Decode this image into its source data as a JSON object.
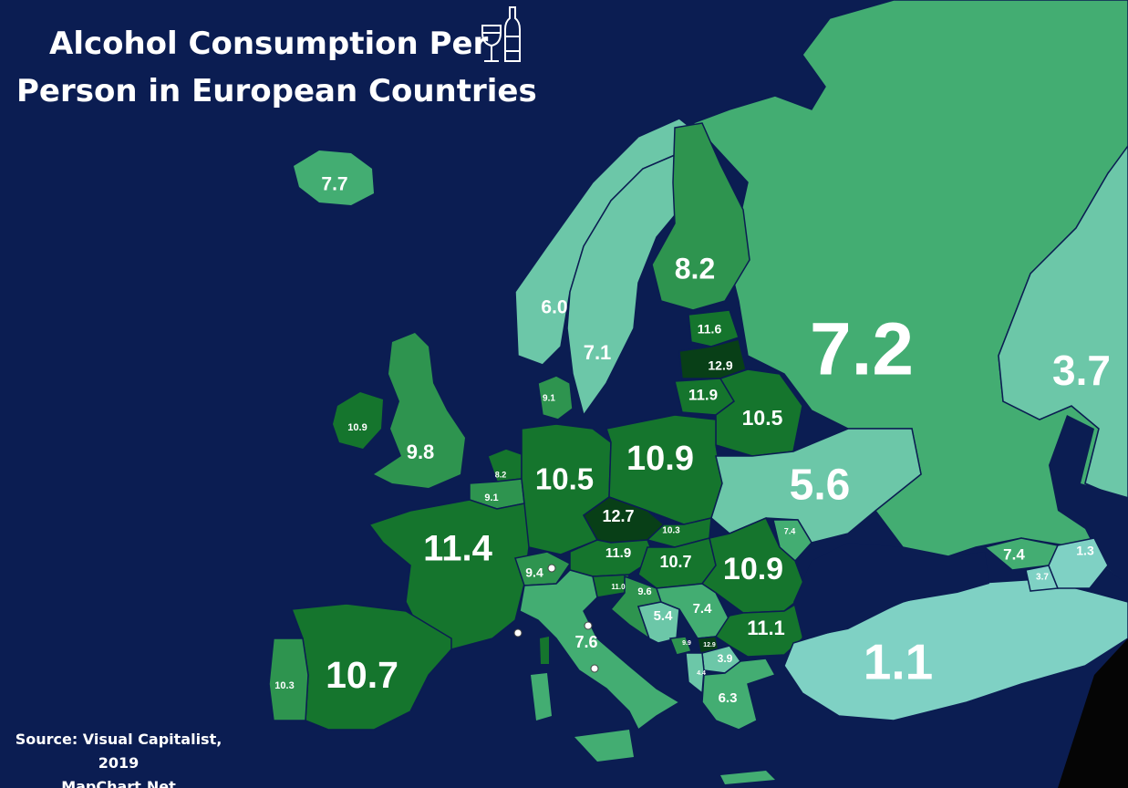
{
  "title": {
    "line1": "Alcohol Consumption Per",
    "line2": "Person in European Countries"
  },
  "credits": {
    "source": "Source: Visual Capitalist, 2019",
    "site": "MapChart.Net"
  },
  "colors": {
    "sea": "#0b1d52",
    "scale": [
      "#7fd1c4",
      "#6cc7a8",
      "#43ad72",
      "#2e944f",
      "#15752d",
      "#0d5a22",
      "#083f17"
    ]
  },
  "regions": [
    {
      "id": "iceland",
      "value": "7.7"
    },
    {
      "id": "norway",
      "value": "6.0"
    },
    {
      "id": "sweden",
      "value": "7.1"
    },
    {
      "id": "finland",
      "value": "8.2"
    },
    {
      "id": "russia",
      "value": "7.2"
    },
    {
      "id": "kazakhstan",
      "value": "3.7"
    },
    {
      "id": "estonia",
      "value": "11.6"
    },
    {
      "id": "latvia",
      "value": "12.9"
    },
    {
      "id": "lithuania",
      "value": "11.9"
    },
    {
      "id": "belarus",
      "value": "10.5"
    },
    {
      "id": "denmark",
      "value": "9.1"
    },
    {
      "id": "ireland",
      "value": "10.9"
    },
    {
      "id": "united-kingdom",
      "value": "9.8"
    },
    {
      "id": "netherlands",
      "value": "8.2"
    },
    {
      "id": "belgium",
      "value": "9.1"
    },
    {
      "id": "germany",
      "value": "10.5"
    },
    {
      "id": "poland",
      "value": "10.9"
    },
    {
      "id": "ukraine",
      "value": "5.6"
    },
    {
      "id": "czechia",
      "value": "12.7"
    },
    {
      "id": "slovakia",
      "value": "10.3"
    },
    {
      "id": "moldova",
      "value": "7.4"
    },
    {
      "id": "france",
      "value": "11.4"
    },
    {
      "id": "switzerland",
      "value": "9.4"
    },
    {
      "id": "austria",
      "value": "11.9"
    },
    {
      "id": "hungary",
      "value": "10.7"
    },
    {
      "id": "romania",
      "value": "10.9"
    },
    {
      "id": "georgia",
      "value": "7.4"
    },
    {
      "id": "azerbaijan",
      "value": "1.3"
    },
    {
      "id": "armenia",
      "value": "3.7"
    },
    {
      "id": "slovenia",
      "value": "11.0"
    },
    {
      "id": "croatia",
      "value": "9.6"
    },
    {
      "id": "bosnia",
      "value": "5.4"
    },
    {
      "id": "serbia",
      "value": "7.4"
    },
    {
      "id": "bulgaria",
      "value": "11.1"
    },
    {
      "id": "montenegro",
      "value": "9.9"
    },
    {
      "id": "kosovo",
      "value": "12.9"
    },
    {
      "id": "north-macedonia",
      "value": "3.9"
    },
    {
      "id": "albania",
      "value": "4.4"
    },
    {
      "id": "greece",
      "value": "6.3"
    },
    {
      "id": "italy",
      "value": "7.6"
    },
    {
      "id": "spain",
      "value": "10.7"
    },
    {
      "id": "portugal",
      "value": "10.3"
    },
    {
      "id": "turkey",
      "value": "1.1"
    }
  ]
}
